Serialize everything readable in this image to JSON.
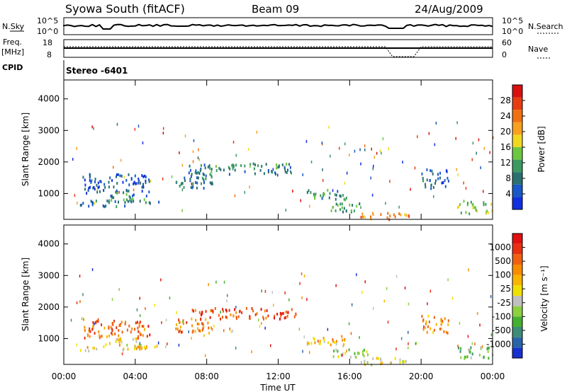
{
  "header": {
    "station": "Syowa South (fitACF)",
    "beam": "Beam 09",
    "date": "24/Aug/2009"
  },
  "top_panel": {
    "left_label": "N.Sky",
    "right_label": "N.Search",
    "scale_top": "10^5",
    "scale_bottom": "10^0"
  },
  "freq_panel": {
    "left_label": "Freq.",
    "left_unit": "[MHz]",
    "right_label": "Nave",
    "left_top": "18",
    "left_bottom": "8",
    "right_top": "60",
    "right_bottom": "0"
  },
  "cpid": {
    "label": "CPID",
    "value": "Stereo -6401"
  },
  "chart_data": [
    {
      "type": "heatmap",
      "title": "Power",
      "ylabel": "Slant Range [km]",
      "xlabel": "Time UT",
      "x_ticks": [
        "00:00",
        "04:00",
        "08:00",
        "12:00",
        "16:00",
        "20:00",
        "00:00"
      ],
      "x_range_hours": [
        0,
        24
      ],
      "y_ticks": [
        1000,
        2000,
        3000,
        4000
      ],
      "ylim": [
        180,
        4600
      ],
      "colorbar": {
        "label": "Power [dB]",
        "ticks": [
          "4",
          "8",
          "12",
          "16",
          "20",
          "24",
          "28"
        ],
        "colors": [
          "#1030e0",
          "#1858c8",
          "#2a7070",
          "#3c9a60",
          "#6cc840",
          "#f0d820",
          "#f8a020",
          "#f07010",
          "#e83c10",
          "#d81010"
        ]
      },
      "regions": [
        {
          "t": [
            1.0,
            4.8
          ],
          "r": [
            1050,
            1650
          ],
          "level": 0.15
        },
        {
          "t": [
            2.3,
            4.6
          ],
          "r": [
            800,
            1050
          ],
          "level": 0.3
        },
        {
          "t": [
            0.9,
            5.3
          ],
          "r": [
            620,
            820
          ],
          "level": 0.25
        },
        {
          "t": [
            6.2,
            8.4
          ],
          "r": [
            1200,
            1700
          ],
          "level": 0.25
        },
        {
          "t": [
            7.0,
            13.0
          ],
          "r": [
            1650,
            2000
          ],
          "level": 0.3
        },
        {
          "t": [
            13.5,
            15.8
          ],
          "r": [
            800,
            1150
          ],
          "level": 0.3
        },
        {
          "t": [
            14.8,
            17.0
          ],
          "r": [
            450,
            750
          ],
          "level": 0.35
        },
        {
          "t": [
            16.5,
            19.5
          ],
          "r": [
            200,
            420
          ],
          "level": 0.7
        },
        {
          "t": [
            20.0,
            21.5
          ],
          "r": [
            1200,
            1800
          ],
          "level": 0.2
        },
        {
          "t": [
            22.0,
            24.0
          ],
          "r": [
            400,
            800
          ],
          "level": 0.45
        }
      ]
    },
    {
      "type": "heatmap",
      "title": "Velocity",
      "ylabel": "Slant Range [km]",
      "xlabel": "Time UT",
      "x_ticks": [
        "00:00",
        "04:00",
        "08:00",
        "12:00",
        "16:00",
        "20:00",
        "00:00"
      ],
      "x_range_hours": [
        0,
        24
      ],
      "y_ticks": [
        1000,
        2000,
        3000,
        4000
      ],
      "ylim": [
        180,
        4600
      ],
      "colorbar": {
        "label": "Velocity [m s⁻¹]",
        "ticks": [
          "1000",
          "500",
          "100",
          "25",
          "-25",
          "-100",
          "-500",
          "-1000"
        ],
        "colors": [
          "#1830d0",
          "#2a64a8",
          "#3c8c78",
          "#44b030",
          "#8cd040",
          "#c0c0c0",
          "#f0e000",
          "#f8b400",
          "#f88c00",
          "#f06010",
          "#e83010",
          "#e01010"
        ]
      },
      "regions": [
        {
          "t": [
            1.0,
            4.8
          ],
          "r": [
            1050,
            1650
          ],
          "level": 0.78
        },
        {
          "t": [
            2.3,
            4.6
          ],
          "r": [
            800,
            1050
          ],
          "level": 0.55
        },
        {
          "t": [
            0.9,
            5.3
          ],
          "r": [
            620,
            820
          ],
          "level": 0.6
        },
        {
          "t": [
            6.2,
            8.4
          ],
          "r": [
            1200,
            1700
          ],
          "level": 0.75
        },
        {
          "t": [
            7.0,
            13.0
          ],
          "r": [
            1650,
            2000
          ],
          "level": 0.85
        },
        {
          "t": [
            13.5,
            15.8
          ],
          "r": [
            800,
            1150
          ],
          "level": 0.62
        },
        {
          "t": [
            14.8,
            17.0
          ],
          "r": [
            450,
            750
          ],
          "level": 0.4
        },
        {
          "t": [
            16.5,
            19.5
          ],
          "r": [
            200,
            420
          ],
          "level": 0.5
        },
        {
          "t": [
            20.0,
            21.5
          ],
          "r": [
            1200,
            1800
          ],
          "level": 0.7
        },
        {
          "t": [
            22.0,
            24.0
          ],
          "r": [
            400,
            800
          ],
          "level": 0.35
        }
      ]
    }
  ]
}
